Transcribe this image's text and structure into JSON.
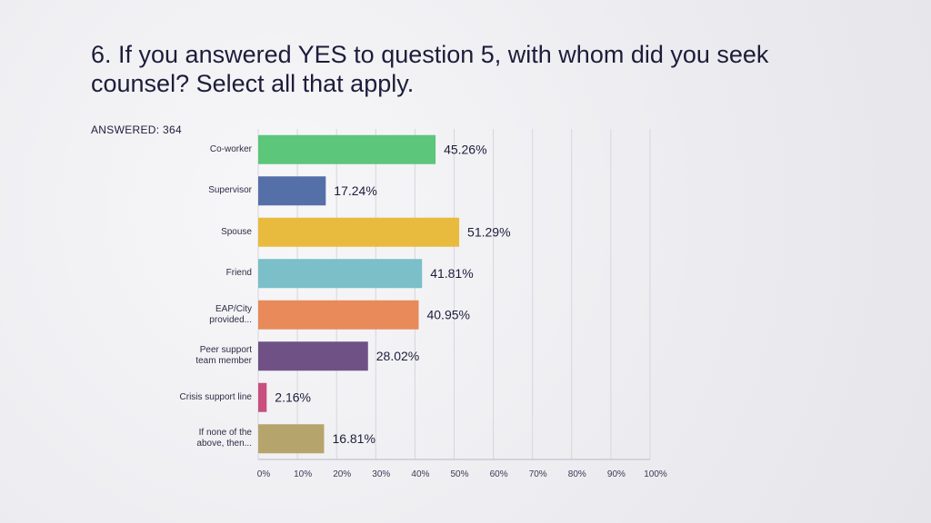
{
  "chart_data": {
    "type": "bar",
    "orientation": "horizontal",
    "title": "6. If you answered YES to question 5, with whom did you seek counsel? Select all that apply.",
    "subtitle": "ANSWERED: 364",
    "categories": [
      "Co-worker",
      "Supervisor",
      "Spouse",
      "Friend",
      "EAP/City provided...",
      "Peer support team member",
      "Crisis support line",
      "If none of the above, then..."
    ],
    "values": [
      45.26,
      17.24,
      51.29,
      41.81,
      40.95,
      28.02,
      2.16,
      16.81
    ],
    "value_labels": [
      "45.26%",
      "17.24%",
      "51.29%",
      "41.81%",
      "40.95%",
      "28.02%",
      "2.16%",
      "16.81%"
    ],
    "colors": [
      "#5cc67a",
      "#5570a8",
      "#e8bb3e",
      "#7bbfc8",
      "#e88a5a",
      "#6f5185",
      "#c84f7e",
      "#b5a56d"
    ],
    "xlim": [
      0,
      100
    ],
    "xticks": [
      {
        "value": 0,
        "label": "0%"
      },
      {
        "value": 10,
        "label": "10%"
      },
      {
        "value": 20,
        "label": "20%"
      },
      {
        "value": 30,
        "label": "30%"
      },
      {
        "value": 40,
        "label": "40%"
      },
      {
        "value": 50,
        "label": "50%"
      },
      {
        "value": 60,
        "label": "60%"
      },
      {
        "value": 70,
        "label": "70%"
      },
      {
        "value": 80,
        "label": "80%"
      },
      {
        "value": 90,
        "label": "90%"
      },
      {
        "value": 100,
        "label": "100%"
      }
    ],
    "grid": true
  }
}
